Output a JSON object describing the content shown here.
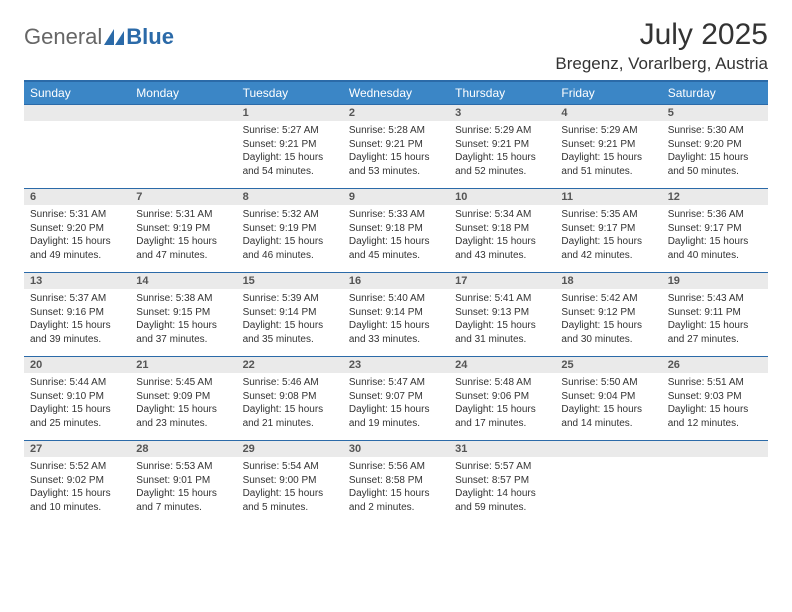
{
  "logo": {
    "text1": "General",
    "text2": "Blue"
  },
  "title": "July 2025",
  "location": "Bregenz, Vorarlberg, Austria",
  "colors": {
    "header_bg": "#3b86c6",
    "header_border": "#2b6aa8",
    "daynum_bg": "#eaeaea",
    "text": "#333333",
    "logo_gray": "#666666",
    "logo_blue": "#2b6aa8"
  },
  "day_headers": [
    "Sunday",
    "Monday",
    "Tuesday",
    "Wednesday",
    "Thursday",
    "Friday",
    "Saturday"
  ],
  "weeks": [
    [
      null,
      null,
      {
        "n": "1",
        "sr": "5:27 AM",
        "ss": "9:21 PM",
        "dl": "15 hours and 54 minutes."
      },
      {
        "n": "2",
        "sr": "5:28 AM",
        "ss": "9:21 PM",
        "dl": "15 hours and 53 minutes."
      },
      {
        "n": "3",
        "sr": "5:29 AM",
        "ss": "9:21 PM",
        "dl": "15 hours and 52 minutes."
      },
      {
        "n": "4",
        "sr": "5:29 AM",
        "ss": "9:21 PM",
        "dl": "15 hours and 51 minutes."
      },
      {
        "n": "5",
        "sr": "5:30 AM",
        "ss": "9:20 PM",
        "dl": "15 hours and 50 minutes."
      }
    ],
    [
      {
        "n": "6",
        "sr": "5:31 AM",
        "ss": "9:20 PM",
        "dl": "15 hours and 49 minutes."
      },
      {
        "n": "7",
        "sr": "5:31 AM",
        "ss": "9:19 PM",
        "dl": "15 hours and 47 minutes."
      },
      {
        "n": "8",
        "sr": "5:32 AM",
        "ss": "9:19 PM",
        "dl": "15 hours and 46 minutes."
      },
      {
        "n": "9",
        "sr": "5:33 AM",
        "ss": "9:18 PM",
        "dl": "15 hours and 45 minutes."
      },
      {
        "n": "10",
        "sr": "5:34 AM",
        "ss": "9:18 PM",
        "dl": "15 hours and 43 minutes."
      },
      {
        "n": "11",
        "sr": "5:35 AM",
        "ss": "9:17 PM",
        "dl": "15 hours and 42 minutes."
      },
      {
        "n": "12",
        "sr": "5:36 AM",
        "ss": "9:17 PM",
        "dl": "15 hours and 40 minutes."
      }
    ],
    [
      {
        "n": "13",
        "sr": "5:37 AM",
        "ss": "9:16 PM",
        "dl": "15 hours and 39 minutes."
      },
      {
        "n": "14",
        "sr": "5:38 AM",
        "ss": "9:15 PM",
        "dl": "15 hours and 37 minutes."
      },
      {
        "n": "15",
        "sr": "5:39 AM",
        "ss": "9:14 PM",
        "dl": "15 hours and 35 minutes."
      },
      {
        "n": "16",
        "sr": "5:40 AM",
        "ss": "9:14 PM",
        "dl": "15 hours and 33 minutes."
      },
      {
        "n": "17",
        "sr": "5:41 AM",
        "ss": "9:13 PM",
        "dl": "15 hours and 31 minutes."
      },
      {
        "n": "18",
        "sr": "5:42 AM",
        "ss": "9:12 PM",
        "dl": "15 hours and 30 minutes."
      },
      {
        "n": "19",
        "sr": "5:43 AM",
        "ss": "9:11 PM",
        "dl": "15 hours and 27 minutes."
      }
    ],
    [
      {
        "n": "20",
        "sr": "5:44 AM",
        "ss": "9:10 PM",
        "dl": "15 hours and 25 minutes."
      },
      {
        "n": "21",
        "sr": "5:45 AM",
        "ss": "9:09 PM",
        "dl": "15 hours and 23 minutes."
      },
      {
        "n": "22",
        "sr": "5:46 AM",
        "ss": "9:08 PM",
        "dl": "15 hours and 21 minutes."
      },
      {
        "n": "23",
        "sr": "5:47 AM",
        "ss": "9:07 PM",
        "dl": "15 hours and 19 minutes."
      },
      {
        "n": "24",
        "sr": "5:48 AM",
        "ss": "9:06 PM",
        "dl": "15 hours and 17 minutes."
      },
      {
        "n": "25",
        "sr": "5:50 AM",
        "ss": "9:04 PM",
        "dl": "15 hours and 14 minutes."
      },
      {
        "n": "26",
        "sr": "5:51 AM",
        "ss": "9:03 PM",
        "dl": "15 hours and 12 minutes."
      }
    ],
    [
      {
        "n": "27",
        "sr": "5:52 AM",
        "ss": "9:02 PM",
        "dl": "15 hours and 10 minutes."
      },
      {
        "n": "28",
        "sr": "5:53 AM",
        "ss": "9:01 PM",
        "dl": "15 hours and 7 minutes."
      },
      {
        "n": "29",
        "sr": "5:54 AM",
        "ss": "9:00 PM",
        "dl": "15 hours and 5 minutes."
      },
      {
        "n": "30",
        "sr": "5:56 AM",
        "ss": "8:58 PM",
        "dl": "15 hours and 2 minutes."
      },
      {
        "n": "31",
        "sr": "5:57 AM",
        "ss": "8:57 PM",
        "dl": "14 hours and 59 minutes."
      },
      null,
      null
    ]
  ],
  "labels": {
    "sunrise": "Sunrise:",
    "sunset": "Sunset:",
    "daylight": "Daylight:"
  }
}
